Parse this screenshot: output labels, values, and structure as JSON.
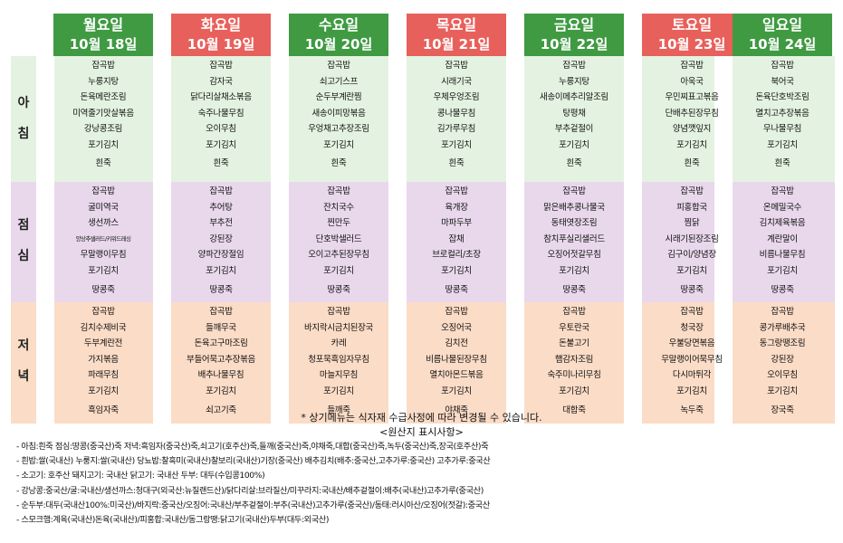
{
  "days": [
    {
      "name": "월요일",
      "date": "10월 18일",
      "color": "#3f9a42"
    },
    {
      "name": "화요일",
      "date": "10월 19일",
      "color": "#e8605b"
    },
    {
      "name": "수요일",
      "date": "10월 20일",
      "color": "#3f9a42"
    },
    {
      "name": "목요일",
      "date": "10월 21일",
      "color": "#e8605b"
    },
    {
      "name": "금요일",
      "date": "10월 22일",
      "color": "#3f9a42"
    },
    {
      "name": "토요일",
      "date": "10월 23일",
      "color": "#e8605b"
    },
    {
      "name": "일요일",
      "date": "10월 24일",
      "color": "#3f9a42"
    }
  ],
  "meal_labels": {
    "morning": [
      "아",
      "침"
    ],
    "lunch": [
      "점",
      "심"
    ],
    "dinner": [
      "저",
      "녁"
    ]
  },
  "menu": {
    "morning": [
      [
        "잡곡밥",
        "누룽지탕",
        "돈육메란조림",
        "미역줄기맛살볶음",
        "강낭콩조림",
        "포기김치",
        "흰죽"
      ],
      [
        "잡곡밥",
        "감자국",
        "닭다리살채소볶음",
        "숙주나물무침",
        "오이무침",
        "포기김치",
        "흰죽"
      ],
      [
        "잡곡밥",
        "쇠고기스프",
        "순두부계란찜",
        "새송이피망볶음",
        "우엉채고추장조림",
        "포기김치",
        "흰죽"
      ],
      [
        "잡곡밥",
        "시래기국",
        "우체우엉조림",
        "콩나물무침",
        "김가루무침",
        "포기김치",
        "흰죽"
      ],
      [
        "잡곡밥",
        "누룽지탕",
        "새송이메추리알조림",
        "탕평채",
        "부추겉절이",
        "포기김치",
        "흰죽"
      ],
      [
        "잡곡밥",
        "아욱국",
        "우민찌표고볶음",
        "단배추된장무침",
        "양념깻잎지",
        "포기김치",
        "흰죽"
      ],
      [
        "잡곡밥",
        "북어국",
        "돈육단호박조림",
        "멸치고추장볶음",
        "무나물무침",
        "포기김치",
        "흰죽"
      ]
    ],
    "lunch": [
      [
        "잡곡밥",
        "굴미역국",
        "생선까스",
        "양상추샐러드/키위드레싱",
        "무말랭이무침",
        "포기김치",
        "땅콩죽"
      ],
      [
        "잡곡밥",
        "추어탕",
        "부추전",
        "강된장",
        "양파간장절임",
        "포기김치",
        "땅콩죽"
      ],
      [
        "잡곡밥",
        "잔치국수",
        "찐만두",
        "단호박샐러드",
        "오이고추된장무침",
        "포기김치",
        "땅콩죽"
      ],
      [
        "잡곡밥",
        "육개장",
        "마파두부",
        "잡채",
        "브로컬리/초장",
        "포기김치",
        "땅콩죽"
      ],
      [
        "잡곡밥",
        "맑은배추콩나물국",
        "동태엿장조림",
        "참치푸실리샐러드",
        "오징어젓갈무침",
        "포기김치",
        "땅콩죽"
      ],
      [
        "잡곡밥",
        "피홍합국",
        "찜닭",
        "시래기된장조림",
        "김구이/양념장",
        "포기김치",
        "땅콩죽"
      ],
      [
        "잡곡밥",
        "온메밀국수",
        "김치제육볶음",
        "계란말이",
        "비름나물무침",
        "포기김치",
        "땅콩죽"
      ]
    ],
    "dinner": [
      [
        "잡곡밥",
        "김치수제비국",
        "두부계란전",
        "가지볶음",
        "파래무침",
        "포기김치",
        "흑임자죽"
      ],
      [
        "잡곡밥",
        "들깨무국",
        "돈육고구마조림",
        "부들어묵고추장볶음",
        "배추나물무침",
        "포기김치",
        "쇠고기죽"
      ],
      [
        "잡곡밥",
        "바지락시금치된장국",
        "카레",
        "청포묵흑임자무침",
        "마늘지무침",
        "포기김치",
        "들깨죽"
      ],
      [
        "잡곡밥",
        "오징어국",
        "김치전",
        "비름나물된장무침",
        "멸치아몬드볶음",
        "포기김치",
        "야채죽"
      ],
      [
        "잡곡밥",
        "우토란국",
        "돈불고기",
        "햄감자조림",
        "숙주미나리무침",
        "포기김치",
        "대합죽"
      ],
      [
        "잡곡밥",
        "청국장",
        "우불당면볶음",
        "무말랭이어묵무침",
        "다시마튀각",
        "포기김치",
        "녹두죽"
      ],
      [
        "잡곡밥",
        "콩가루배추국",
        "동그랑땡조림",
        "강된장",
        "오이무침",
        "포기김치",
        "장국죽"
      ]
    ]
  },
  "notice": "* 상기메뉴는 식자재 수급사정에 따라 변경될 수 있습니다.",
  "origin_title": "<원산지 표시사항>",
  "origin_lines": [
    "- 아침:흰죽  점심:땅콩(중국산)죽  저녁:흑임자(중국산)죽,쇠고기(호주산)죽,들깨(중국산)죽,야채죽,대합(중국산)죽,녹두(중국산)죽,장국(호주산)죽",
    "- 흰밥:쌀(국내산)  누룽지:쌀(국내산) 당뇨밥:찰흑미(국내산)찰보리(국내산)기장(중국산)  배추김치(배추:중국산,고추가루:중국산)  고추가루:중국산",
    "- 소고기: 호주산  돼지고기:  국내산  닭고기:  국내산  두부:  대두(수입콩100%)",
    "- 강낭콩:중국산/굴:국내산/생선까스:청대구(외국산:뉴질랜드산)/닭다리살:브라질산/미꾸라지:국내산/배추겉절이:배추(국내산)고추가루(중국산)",
    "- 순두부:대두(국내산100%:미국산)/바지락:중국산/오징어:국내산/부추겉절이:부추(국내산)고추가루(중국산)/동태:러시아산/오징어(젓갈):중국산",
    "- 스모크햄:계육(국내산)돈육(국내산)/피홍합:국내산/동그랑땡:닭고기(국내산)두부(대두:외국산)"
  ]
}
